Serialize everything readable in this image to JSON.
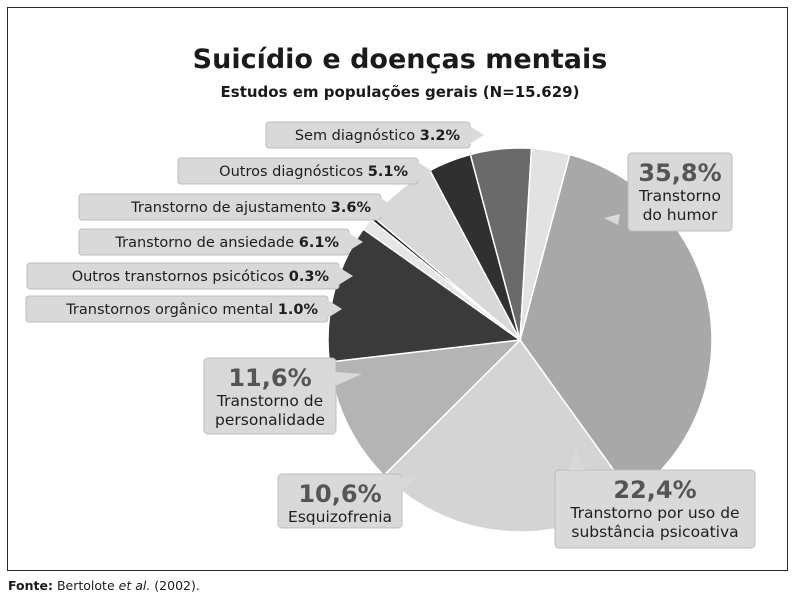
{
  "chart_data": {
    "type": "pie",
    "title": "Suicídio e doenças mentais",
    "subtitle": "Estudos em populações gerais (N=15.629)",
    "slices": [
      {
        "name": "Transtorno do humor",
        "value": 35.8,
        "pct_label": "35,8%",
        "label_lines": [
          "Transtorno",
          "do humor"
        ],
        "color": "#a8a8a8"
      },
      {
        "name": "Transtorno por uso de substância psicoativa",
        "value": 22.4,
        "pct_label": "22,4%",
        "label_lines": [
          "Transtorno por uso de",
          "substância psicoativa"
        ],
        "color": "#d4d4d4"
      },
      {
        "name": "Esquizofrenia",
        "value": 10.6,
        "pct_label": "10,6%",
        "label_lines": [
          "Esquizofrenia"
        ],
        "color": "#b4b4b4"
      },
      {
        "name": "Transtorno de personalidade",
        "value": 11.6,
        "pct_label": "11,6%",
        "label_lines": [
          "Transtorno de",
          "personalidade"
        ],
        "color": "#3a3a3a"
      },
      {
        "name": "Transtornos orgânico mental",
        "value": 1.0,
        "pct_label": "1.0%",
        "color": "#e6e6e6"
      },
      {
        "name": "Outros transtornos psicóticos",
        "value": 0.3,
        "pct_label": "0.3%",
        "color": "#202020"
      },
      {
        "name": "Transtorno de ansiedade",
        "value": 6.1,
        "pct_label": "6.1%",
        "color": "#d8d8d8"
      },
      {
        "name": "Transtorno de ajustamento",
        "value": 3.6,
        "pct_label": "3.6%",
        "color": "#303030"
      },
      {
        "name": "Outros diagnósticos",
        "value": 5.1,
        "pct_label": "5.1%",
        "color": "#6a6a6a"
      },
      {
        "name": "Sem diagnóstico",
        "value": 3.2,
        "pct_label": "3.2%",
        "color": "#e2e2e2"
      }
    ]
  },
  "source": {
    "prefix": "Fonte:",
    "author": "Bertolote",
    "etal": "et al.",
    "year": "(2002)."
  },
  "colors": {
    "frame": "#2a2a2a",
    "label_box": "#d9d9d9",
    "percent_text": "#555555"
  }
}
